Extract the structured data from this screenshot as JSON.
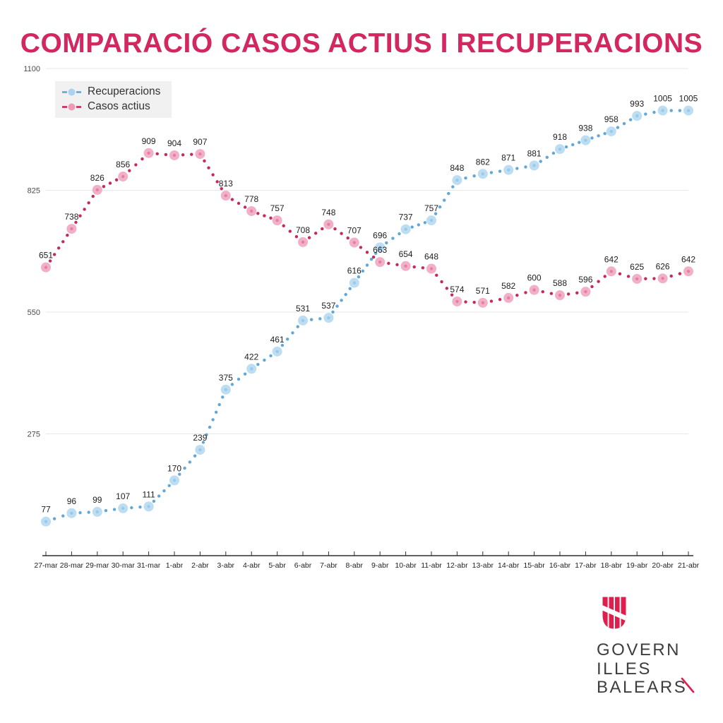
{
  "title": {
    "text": "COMPARACIÓ CASOS ACTIUS I RECUPERACIONS"
  },
  "colors": {
    "title_pink": "#d2275f",
    "brand_red": "#de1f4d",
    "logo_text_gray": "#3e3e3e",
    "grid_gray": "#e7e7e7",
    "axis_dark": "#2f2f2f"
  },
  "chart_data": {
    "type": "line",
    "title": "COMPARACIÓ CASOS ACTIUS I RECUPERACIONS",
    "categories": [
      "27-mar",
      "28-mar",
      "29-mar",
      "30-mar",
      "31-mar",
      "1-abr",
      "2-abr",
      "3-abr",
      "4-abr",
      "5-abr",
      "6-abr",
      "7-abr",
      "8-abr",
      "9-abr",
      "10-abr",
      "11-abr",
      "12-abr",
      "13-abr",
      "14-abr",
      "15-abr",
      "16-abr",
      "17-abr",
      "18-abr",
      "19-abr",
      "20-abr",
      "21-abr"
    ],
    "series": [
      {
        "name": "Recuperacions",
        "values": [
          77,
          96,
          99,
          107,
          111,
          170,
          239,
          375,
          422,
          461,
          531,
          537,
          616,
          696,
          737,
          757,
          848,
          862,
          871,
          881,
          918,
          938,
          958,
          993,
          1005,
          1005
        ],
        "marker_color": "#a9d3ee",
        "dot_color": "#5fa8d8"
      },
      {
        "name": "Casos actius",
        "values": [
          651,
          738,
          826,
          856,
          909,
          904,
          907,
          813,
          778,
          757,
          708,
          748,
          707,
          663,
          654,
          648,
          574,
          571,
          582,
          600,
          588,
          596,
          642,
          625,
          626,
          642
        ],
        "marker_color": "#ee9ab8",
        "dot_color": "#c5285a"
      }
    ],
    "ylim": [
      0,
      1100
    ],
    "yticks": [
      1100,
      825,
      550,
      275
    ],
    "xlabel": "",
    "ylabel": "",
    "grid": "horizontal",
    "legend_position": "top-left",
    "line_style": "dotted",
    "point_labels": true
  },
  "logo": {
    "line1": "GOVERN",
    "line2": "ILLES",
    "line3": "BALEARS"
  }
}
